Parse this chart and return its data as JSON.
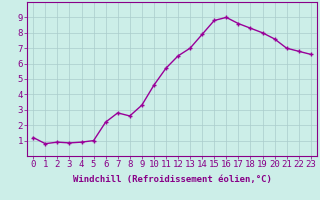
{
  "x": [
    0,
    1,
    2,
    3,
    4,
    5,
    6,
    7,
    8,
    9,
    10,
    11,
    12,
    13,
    14,
    15,
    16,
    17,
    18,
    19,
    20,
    21,
    22,
    23
  ],
  "y": [
    1.2,
    0.8,
    0.9,
    0.85,
    0.9,
    1.0,
    2.2,
    2.8,
    2.6,
    3.3,
    4.6,
    5.7,
    6.5,
    7.0,
    7.9,
    8.8,
    9.0,
    8.6,
    8.3,
    8.0,
    7.6,
    7.0,
    6.8,
    6.6
  ],
  "line_color": "#990099",
  "marker": "+",
  "marker_size": 3,
  "bg_color": "#cceee8",
  "grid_color": "#aacccc",
  "xlabel": "Windchill (Refroidissement éolien,°C)",
  "ylim": [
    0,
    10
  ],
  "xlim_min": -0.5,
  "xlim_max": 23.5,
  "yticks": [
    1,
    2,
    3,
    4,
    5,
    6,
    7,
    8,
    9
  ],
  "xticks": [
    0,
    1,
    2,
    3,
    4,
    5,
    6,
    7,
    8,
    9,
    10,
    11,
    12,
    13,
    14,
    15,
    16,
    17,
    18,
    19,
    20,
    21,
    22,
    23
  ],
  "tick_color": "#880088",
  "xlabel_color": "#880088",
  "xlabel_fontsize": 6.5,
  "tick_fontsize": 6.5,
  "spine_color": "#880088",
  "linewidth": 1.0,
  "markeredgewidth": 1.0
}
